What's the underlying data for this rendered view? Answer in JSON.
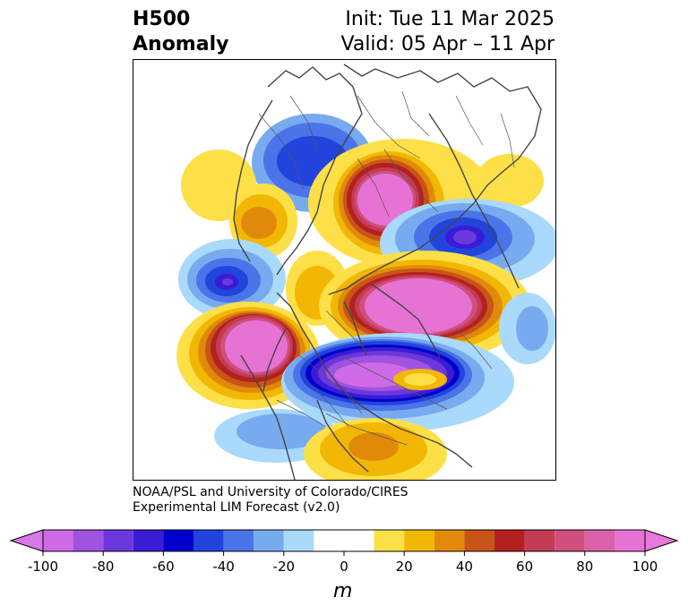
{
  "title": {
    "variable": "H500",
    "field": "Anomaly",
    "init": "Init: Tue 11 Mar 2025",
    "valid": "Valid: 05 Apr – 11 Apr"
  },
  "credit": {
    "line1": "NOAA/PSL and University of Colorado/CIRES",
    "line2": "Experimental LIM Forecast (v2.0)"
  },
  "colorbar": {
    "unit": "m",
    "ticks": [
      "-100",
      "-80",
      "-60",
      "-40",
      "-20",
      "0",
      "20",
      "40",
      "60",
      "80",
      "100"
    ],
    "bins": [
      -100,
      -90,
      -80,
      -70,
      -60,
      -50,
      -40,
      -30,
      -20,
      -10,
      10,
      20,
      30,
      40,
      50,
      60,
      70,
      80,
      90,
      100
    ],
    "colors": [
      "#cf6ae6",
      "#a052e0",
      "#6c38dc",
      "#3a1cd6",
      "#0000cc",
      "#2244dd",
      "#4a74e8",
      "#78aaf0",
      "#a9d9fb",
      "#ffffff",
      "#fde047",
      "#f2b705",
      "#e18a0a",
      "#c95418",
      "#b3211e",
      "#c43b55",
      "#d04f7c",
      "#da62ab",
      "#e673d3"
    ],
    "under_color": "#d878e8",
    "over_color": "#ea78dc"
  },
  "map_anomalies": [
    {
      "value": 100,
      "lon": 110,
      "lat": 72
    },
    {
      "value": 100,
      "lon": 0,
      "lat": 60
    },
    {
      "value": 100,
      "lon": -100,
      "lat": 45
    },
    {
      "value": -100,
      "lon": -60,
      "lat": 50
    },
    {
      "value": -70,
      "lon": 150,
      "lat": 62
    },
    {
      "value": -60,
      "lon": 170,
      "lat": 50
    },
    {
      "value": -40,
      "lon": 85,
      "lat": 48
    },
    {
      "value": 60,
      "lon": 170,
      "lat": 42
    },
    {
      "value": 40,
      "lon": -150,
      "lat": 28
    }
  ]
}
